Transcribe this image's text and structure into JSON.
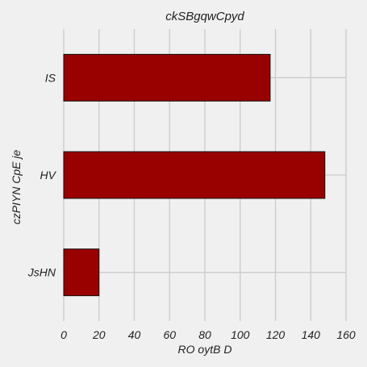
{
  "chart_data": {
    "type": "bar",
    "orientation": "horizontal",
    "title": "ckSBgqwCpyd",
    "xlabel": "RO  oytB D",
    "ylabel": "czPIYN CpE je",
    "categories": [
      "IS",
      "HV",
      "JsHN"
    ],
    "values": [
      117,
      148,
      20
    ],
    "xlim": [
      0,
      160
    ],
    "xticks": [
      "0",
      "20",
      "40",
      "60",
      "80",
      "100",
      "120",
      "140",
      "160"
    ],
    "grid": true,
    "bar_color": "#990000",
    "bar_edge_color": "#111111",
    "background_color": "#f0f0f0",
    "grid_color": "#cbcbcb"
  }
}
